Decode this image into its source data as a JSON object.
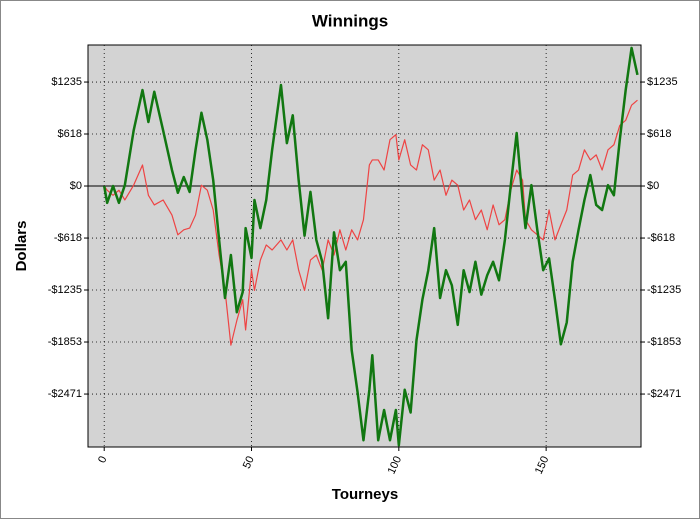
{
  "chart_data": {
    "type": "line",
    "title": "Winnings",
    "xlabel": "Tourneys",
    "ylabel": "Dollars",
    "x": [
      0,
      1,
      3,
      5,
      7,
      10,
      13,
      15,
      17,
      20,
      23,
      25,
      27,
      29,
      31,
      33,
      35,
      37,
      39,
      41,
      43,
      45,
      47,
      48,
      50,
      51,
      53,
      55,
      57,
      60,
      62,
      64,
      66,
      68,
      70,
      72,
      74,
      76,
      78,
      80,
      82,
      84,
      86,
      88,
      90,
      91,
      93,
      95,
      97,
      99,
      100,
      102,
      104,
      106,
      108,
      110,
      112,
      114,
      116,
      118,
      120,
      122,
      124,
      126,
      128,
      130,
      132,
      134,
      136,
      138,
      140,
      142,
      143,
      145,
      147,
      149,
      151,
      153,
      155,
      157,
      159,
      161,
      163,
      165,
      167,
      169,
      171,
      173,
      175,
      177,
      179,
      181
    ],
    "series": [
      {
        "color": "#117711",
        "values": [
          0,
          -200,
          0,
          -200,
          10,
          660,
          1140,
          760,
          1120,
          660,
          190,
          -80,
          107,
          -70,
          430,
          870,
          550,
          70,
          -640,
          -1330,
          -820,
          -1500,
          -1260,
          -500,
          -855,
          -166,
          -500,
          -166,
          430,
          1200,
          510,
          840,
          70,
          -590,
          -70,
          -640,
          -900,
          -1570,
          -550,
          -1000,
          -900,
          -1950,
          -2450,
          -3020,
          -2420,
          -2010,
          -3020,
          -2660,
          -3020,
          -2660,
          -3080,
          -2420,
          -2690,
          -1830,
          -1350,
          -1000,
          -500,
          -1330,
          -1000,
          -1180,
          -1650,
          -1000,
          -1260,
          -900,
          -1290,
          -1060,
          -900,
          -1120,
          -640,
          10,
          630,
          -166,
          -500,
          10,
          -520,
          -1000,
          -860,
          -1350,
          -1880,
          -1620,
          -900,
          -520,
          -166,
          130,
          -225,
          -285,
          10,
          -110,
          550,
          1140,
          1640,
          1320
        ]
      },
      {
        "color": "#ee4444",
        "values": [
          0,
          -50,
          -110,
          -50,
          -166,
          10,
          250,
          -110,
          -225,
          -166,
          -345,
          -580,
          -520,
          -500,
          -345,
          10,
          -50,
          -285,
          -820,
          -1235,
          -1890,
          -1600,
          -1350,
          -1710,
          -1000,
          -1240,
          -880,
          -700,
          -760,
          -640,
          -760,
          -640,
          -1000,
          -1240,
          -880,
          -820,
          -1000,
          -640,
          -820,
          -520,
          -760,
          -520,
          -640,
          -400,
          250,
          310,
          310,
          190,
          550,
          610,
          310,
          550,
          250,
          190,
          490,
          430,
          70,
          190,
          -110,
          70,
          10,
          -285,
          -166,
          -400,
          -285,
          -520,
          -225,
          -460,
          -400,
          -50,
          190,
          70,
          -400,
          -520,
          -580,
          -640,
          -285,
          -640,
          -460,
          -285,
          130,
          190,
          430,
          310,
          370,
          190,
          430,
          490,
          720,
          780,
          960,
          1020
        ]
      }
    ],
    "xlim": [
      -5.5,
      182.2
    ],
    "xticks": [
      0,
      50,
      100,
      150
    ],
    "ylim": [
      -3100,
      1675
    ],
    "yticks": [
      {
        "value": 1235,
        "label": "$1235"
      },
      {
        "value": 618,
        "label": "$618"
      },
      {
        "value": 0,
        "label": "$0"
      },
      {
        "value": -618,
        "label": "-$618"
      },
      {
        "value": -1235,
        "label": "-$1235"
      },
      {
        "value": -1853,
        "label": "-$1853"
      },
      {
        "value": -2471,
        "label": "-$2471"
      }
    ],
    "grid": true,
    "plot_background": "#d3d3d3"
  }
}
